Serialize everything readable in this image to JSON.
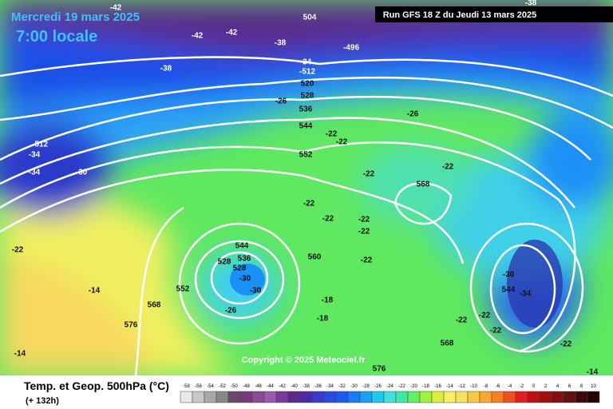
{
  "header": {
    "date": "Mercredi 19 mars 2025",
    "time": "7:00 locale",
    "run": "Run GFS 18 Z du Jeudi 13 mars 2025"
  },
  "copyright": "Copyright © 2025 Meteociel.fr",
  "footer": {
    "title": "Temp. et Geop. 500hPa (°C)",
    "lead": "(+ 132h)"
  },
  "map_labels": [
    "-42",
    "-42",
    "-42",
    "-38",
    "504",
    "-496",
    "-38",
    "-38",
    "-34",
    "-512",
    "520",
    "528",
    "-26",
    "536",
    "-26",
    "544",
    "-22",
    "-22",
    "552",
    "-22",
    "-22",
    "568",
    "-512",
    "-34",
    "-34",
    "-30",
    "-22",
    "-22",
    "-22",
    "-22",
    "544",
    "536",
    "528",
    "528",
    "-30",
    "552",
    "560",
    "-22",
    "-30",
    "-26",
    "-18",
    "-18",
    "-14",
    "568",
    "576",
    "-14",
    "-30",
    "544",
    "-34",
    "-22",
    "-22",
    "-22",
    "-22",
    "568",
    "576",
    "-14",
    "-22"
  ],
  "legend": {
    "values": [
      "-58",
      "-56",
      "-54",
      "-52",
      "-50",
      "-48",
      "-46",
      "-44",
      "-42",
      "-40",
      "-38",
      "-36",
      "-34",
      "-32",
      "-30",
      "-28",
      "-26",
      "-24",
      "-22",
      "-20",
      "-18",
      "-16",
      "-14",
      "-12",
      "-10",
      "-8",
      "-6",
      "-4",
      "-2",
      "0",
      "2",
      "4",
      "6",
      "8",
      "10"
    ],
    "colors": [
      "#e8e8e8",
      "#c8c8c8",
      "#a8a8a8",
      "#888888",
      "#6a4a6a",
      "#7a3a7a",
      "#8a4a9a",
      "#9a5aaa",
      "#7a3a9a",
      "#5a2a8a",
      "#4a2aaa",
      "#3a3acc",
      "#2a4ae0",
      "#1a5af0",
      "#1a7af8",
      "#1aa0f8",
      "#20c8f0",
      "#40e0e0",
      "#40e8a0",
      "#60f060",
      "#a0f040",
      "#d8f040",
      "#f8f060",
      "#f8e060",
      "#f8c840",
      "#f8a830",
      "#f88020",
      "#f05020",
      "#e02020",
      "#c01010",
      "#a01010",
      "#801010",
      "#601010",
      "#400808",
      "#200404"
    ]
  }
}
